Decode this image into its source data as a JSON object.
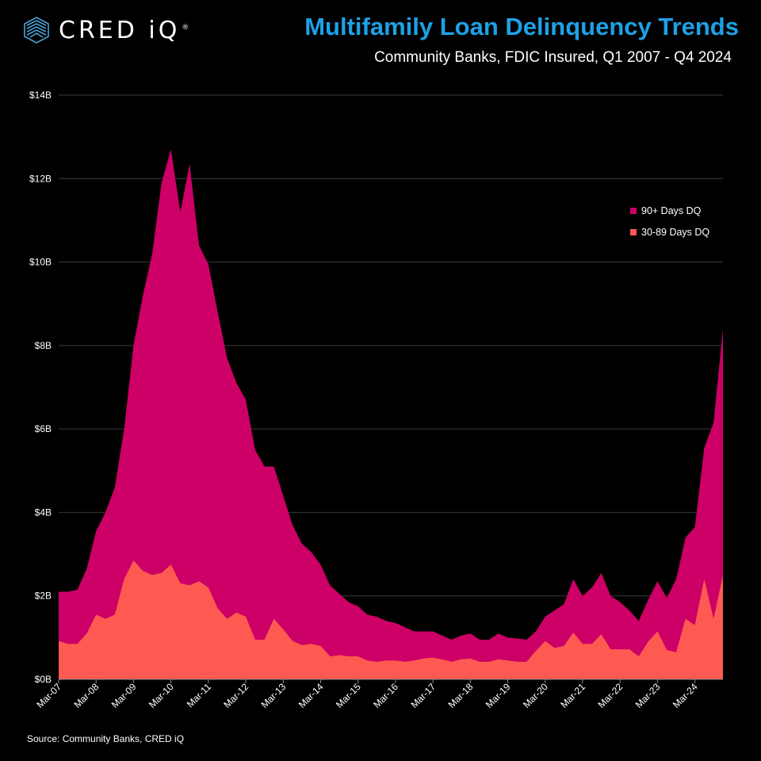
{
  "brand": {
    "name": "CRED iQ",
    "mark": "®"
  },
  "source_text": "Source: Community Banks, CRED iQ",
  "colors": {
    "background": "#000000",
    "title": "#1da1e6",
    "dq90": "#cc0066",
    "dq30": "#ff5a52",
    "grid": "#3a3a3a"
  },
  "chart_data": {
    "type": "area",
    "stacked": true,
    "title": "Multifamily Loan Delinquency Trends",
    "subtitle": "Community Banks, FDIC Insured, Q1 2007 - Q4 2024",
    "xlabel": "",
    "ylabel": "",
    "ylim": [
      0,
      14
    ],
    "yticks": [
      "$0B",
      "$2B",
      "$4B",
      "$6B",
      "$8B",
      "$10B",
      "$12B",
      "$14B"
    ],
    "xtick_labels": [
      "Mar-07",
      "Mar-08",
      "Mar-09",
      "Mar-10",
      "Mar-11",
      "Mar-12",
      "Mar-13",
      "Mar-14",
      "Mar-15",
      "Mar-16",
      "Mar-17",
      "Mar-18",
      "Mar-19",
      "Mar-20",
      "Mar-21",
      "Mar-22",
      "Mar-23",
      "Mar-24"
    ],
    "grid": true,
    "legend_position": "top-right",
    "series": [
      {
        "name": "90+ Days DQ",
        "total_values": [
          2.1,
          2.1,
          2.15,
          2.65,
          3.55,
          4.0,
          4.6,
          6.0,
          8.0,
          9.2,
          10.2,
          11.9,
          12.7,
          11.2,
          12.35,
          10.4,
          9.95,
          8.8,
          7.7,
          7.1,
          6.7,
          5.5,
          5.1,
          5.1,
          4.4,
          3.7,
          3.25,
          3.05,
          2.75,
          2.25,
          2.05,
          1.85,
          1.75,
          1.55,
          1.5,
          1.4,
          1.35,
          1.25,
          1.15,
          1.15,
          1.15,
          1.05,
          0.95,
          1.05,
          1.1,
          0.95,
          0.95,
          1.1,
          1.0,
          0.98,
          0.95,
          1.15,
          1.5,
          1.65,
          1.8,
          2.4,
          2.0,
          2.2,
          2.55,
          2.0,
          1.85,
          1.65,
          1.4,
          1.9,
          2.35,
          1.95,
          2.4,
          3.4,
          3.65,
          5.55,
          6.15,
          8.4
        ]
      },
      {
        "name": "30-89 Days DQ",
        "values": [
          0.92,
          0.85,
          0.85,
          1.1,
          1.55,
          1.45,
          1.55,
          2.4,
          2.85,
          2.6,
          2.5,
          2.55,
          2.75,
          2.3,
          2.25,
          2.35,
          2.2,
          1.7,
          1.45,
          1.6,
          1.5,
          0.95,
          0.95,
          1.45,
          1.2,
          0.92,
          0.82,
          0.85,
          0.8,
          0.55,
          0.58,
          0.55,
          0.55,
          0.45,
          0.42,
          0.45,
          0.45,
          0.42,
          0.45,
          0.5,
          0.52,
          0.48,
          0.42,
          0.48,
          0.5,
          0.42,
          0.42,
          0.48,
          0.45,
          0.42,
          0.42,
          0.68,
          0.92,
          0.75,
          0.8,
          1.12,
          0.85,
          0.85,
          1.08,
          0.72,
          0.72,
          0.72,
          0.55,
          0.9,
          1.15,
          0.7,
          0.65,
          1.45,
          1.3,
          2.4,
          1.45,
          2.5
        ]
      }
    ]
  }
}
